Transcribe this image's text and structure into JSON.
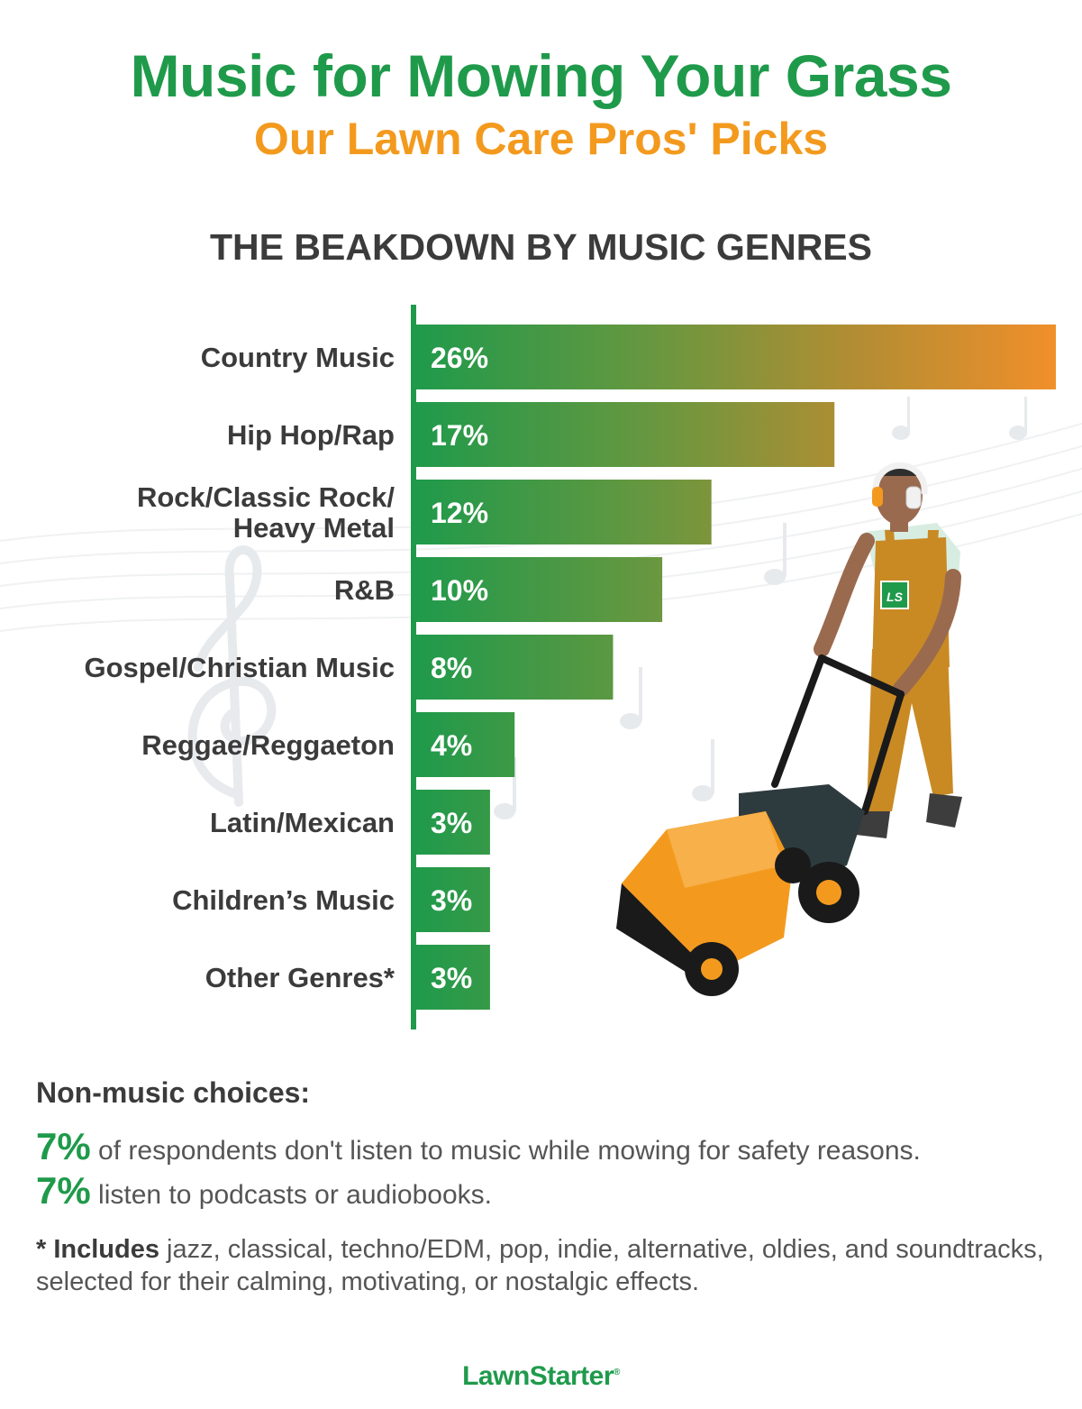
{
  "title": "Music for Mowing Your Grass",
  "subtitle": "Our Lawn Care Pros' Picks",
  "section_heading": "THE BEAKDOWN BY MUSIC GENRES",
  "colors": {
    "green": "#1f9a4b",
    "orange": "#f39a1e",
    "text_dark": "#3b3b3b",
    "text_gray": "#555555"
  },
  "chart_data": {
    "type": "bar",
    "orientation": "horizontal",
    "categories": [
      [
        "Country Music"
      ],
      [
        "Hip Hop/Rap"
      ],
      [
        "Rock/Classic Rock/",
        "Heavy Metal"
      ],
      [
        "R&B"
      ],
      [
        "Gospel/Christian Music"
      ],
      [
        "Reggae/Reggaeton"
      ],
      [
        "Latin/Mexican"
      ],
      [
        "Children’s Music"
      ],
      [
        "Other Genres*"
      ]
    ],
    "values": [
      26,
      17,
      12,
      10,
      8,
      4,
      3,
      3,
      3
    ],
    "value_labels": [
      "26%",
      "17%",
      "12%",
      "10%",
      "8%",
      "4%",
      "3%",
      "3%",
      "3%"
    ],
    "unit": "%",
    "xlim": [
      0,
      26
    ],
    "grid": false,
    "legend": "none"
  },
  "notes": {
    "heading": "Non-music choices:",
    "stats": [
      {
        "value": "7%",
        "text": " of respondents don't listen to music while mowing for safety reasons."
      },
      {
        "value": "7%",
        "text": " listen to podcasts or audiobooks."
      }
    ],
    "footnote_strong": "* Includes",
    "footnote_text": " jazz, classical, techno/EDM, pop, indie, alternative, oldies, and soundtracks, selected for their calming, motivating, or nostalgic effects."
  },
  "brand": {
    "name": "LawnStarter",
    "mark": "®"
  },
  "illustration": {
    "badge": "LS"
  }
}
